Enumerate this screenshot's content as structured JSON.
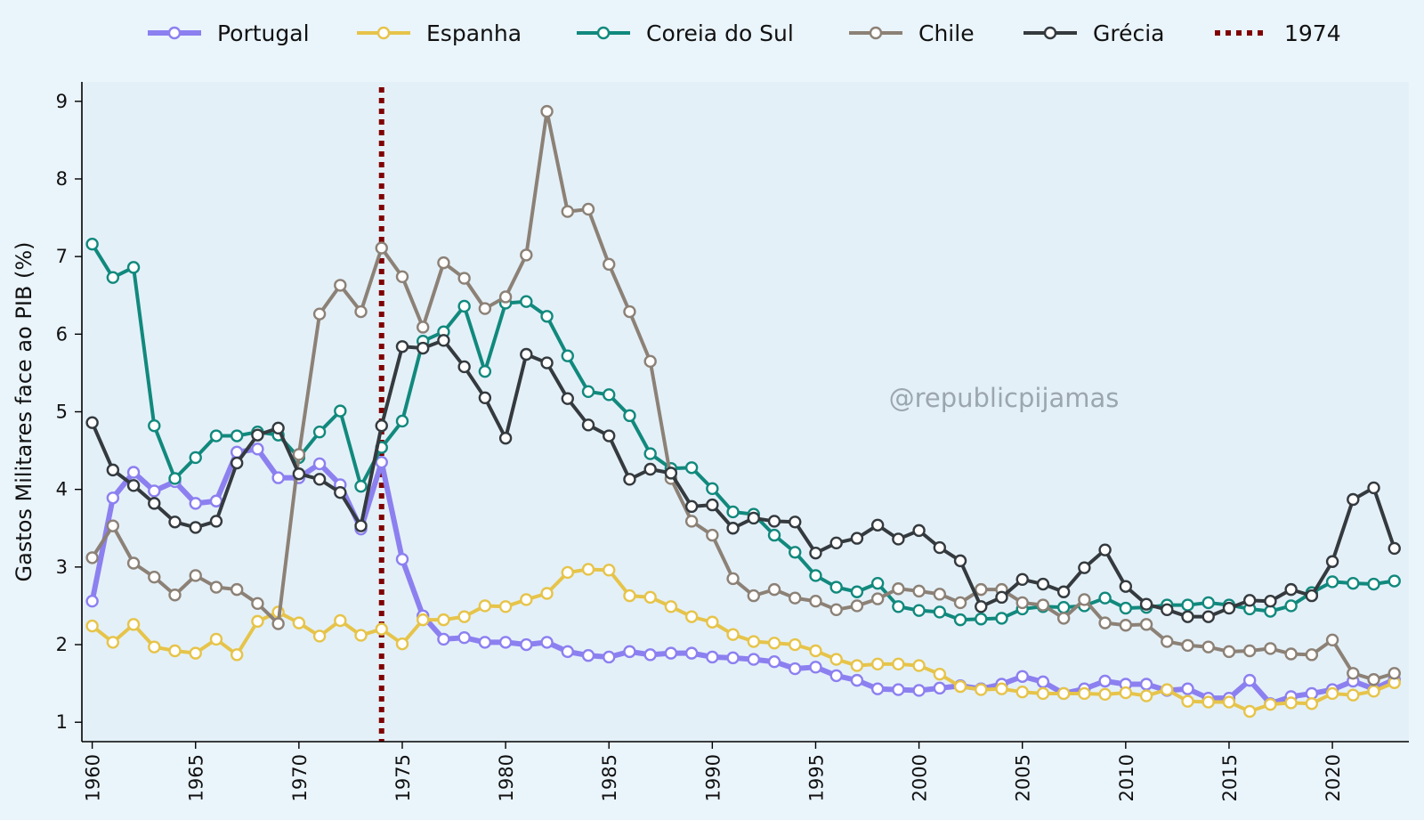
{
  "chart_data": {
    "type": "line",
    "title": "",
    "xlabel": "",
    "ylabel": "Gastos Militares face ao PIB (%)",
    "xlim": [
      1959.5,
      2023.7
    ],
    "ylim": [
      0.75,
      9.25
    ],
    "xticks": [
      1960,
      1965,
      1970,
      1975,
      1980,
      1985,
      1990,
      1995,
      2000,
      2005,
      2010,
      2015,
      2020
    ],
    "yticks": [
      1,
      2,
      3,
      4,
      5,
      6,
      7,
      8,
      9
    ],
    "grid": false,
    "legend_position": "top-center",
    "watermark": "@republicpijamas",
    "vline": {
      "x": 1974,
      "label": "1974",
      "color": "#800000"
    },
    "x": [
      1960,
      1961,
      1962,
      1963,
      1964,
      1965,
      1966,
      1967,
      1968,
      1969,
      1970,
      1971,
      1972,
      1973,
      1974,
      1975,
      1976,
      1977,
      1978,
      1979,
      1980,
      1981,
      1982,
      1983,
      1984,
      1985,
      1986,
      1987,
      1988,
      1989,
      1990,
      1991,
      1992,
      1993,
      1994,
      1995,
      1996,
      1997,
      1998,
      1999,
      2000,
      2001,
      2002,
      2003,
      2004,
      2005,
      2006,
      2007,
      2008,
      2009,
      2010,
      2011,
      2012,
      2013,
      2014,
      2015,
      2016,
      2017,
      2018,
      2019,
      2020,
      2021,
      2022,
      2023
    ],
    "series": [
      {
        "name": "Portugal",
        "color": "#8c80f0",
        "width": 6,
        "values": [
          2.56,
          3.89,
          4.22,
          3.98,
          4.1,
          3.82,
          3.85,
          4.48,
          4.52,
          4.15,
          4.15,
          4.33,
          4.06,
          3.49,
          4.35,
          3.1,
          2.37,
          2.07,
          2.09,
          2.03,
          2.03,
          2.0,
          2.03,
          1.91,
          1.86,
          1.84,
          1.91,
          1.87,
          1.89,
          1.89,
          1.84,
          1.83,
          1.81,
          1.78,
          1.69,
          1.71,
          1.6,
          1.54,
          1.43,
          1.42,
          1.41,
          1.44,
          1.47,
          1.43,
          1.49,
          1.59,
          1.52,
          1.37,
          1.43,
          1.53,
          1.49,
          1.49,
          1.41,
          1.43,
          1.31,
          1.31,
          1.54,
          1.24,
          1.33,
          1.37,
          1.42,
          1.53,
          1.43,
          1.55
        ]
      },
      {
        "name": "Espanha",
        "color": "#e6c44a",
        "width": 4,
        "values": [
          2.24,
          2.03,
          2.26,
          1.97,
          1.92,
          1.89,
          2.07,
          1.87,
          2.3,
          2.42,
          2.28,
          2.11,
          2.31,
          2.12,
          2.2,
          2.01,
          2.32,
          2.32,
          2.36,
          2.5,
          2.49,
          2.58,
          2.66,
          2.93,
          2.97,
          2.96,
          2.63,
          2.61,
          2.49,
          2.36,
          2.29,
          2.13,
          2.04,
          2.02,
          2.0,
          1.92,
          1.81,
          1.73,
          1.75,
          1.75,
          1.73,
          1.62,
          1.46,
          1.42,
          1.43,
          1.39,
          1.37,
          1.37,
          1.37,
          1.36,
          1.38,
          1.34,
          1.42,
          1.27,
          1.26,
          1.26,
          1.14,
          1.23,
          1.25,
          1.24,
          1.37,
          1.35,
          1.4,
          1.51
        ]
      },
      {
        "name": "Coreia do Sul",
        "color": "#11897d",
        "width": 4,
        "values": [
          7.16,
          6.73,
          6.86,
          4.82,
          4.14,
          4.41,
          4.69,
          4.69,
          4.74,
          4.7,
          4.41,
          4.74,
          5.01,
          4.04,
          4.54,
          4.88,
          5.91,
          6.03,
          6.36,
          5.52,
          6.4,
          6.42,
          6.23,
          5.72,
          5.26,
          5.22,
          4.95,
          4.46,
          4.27,
          4.28,
          4.01,
          3.71,
          3.68,
          3.41,
          3.19,
          2.89,
          2.74,
          2.68,
          2.79,
          2.49,
          2.44,
          2.42,
          2.32,
          2.33,
          2.34,
          2.46,
          2.49,
          2.48,
          2.5,
          2.6,
          2.47,
          2.48,
          2.51,
          2.51,
          2.54,
          2.51,
          2.46,
          2.43,
          2.5,
          2.67,
          2.81,
          2.79,
          2.78,
          2.82
        ]
      },
      {
        "name": "Chile",
        "color": "#8c8176",
        "width": 4,
        "values": [
          3.12,
          3.53,
          3.05,
          2.87,
          2.64,
          2.89,
          2.74,
          2.71,
          2.53,
          2.27,
          4.45,
          6.26,
          6.63,
          6.29,
          7.11,
          6.74,
          6.09,
          6.92,
          6.72,
          6.33,
          6.48,
          7.02,
          8.87,
          7.58,
          7.61,
          6.9,
          6.29,
          5.65,
          4.14,
          3.59,
          3.41,
          2.85,
          2.63,
          2.71,
          2.6,
          2.56,
          2.45,
          2.5,
          2.59,
          2.72,
          2.69,
          2.65,
          2.54,
          2.71,
          2.71,
          2.54,
          2.51,
          2.34,
          2.58,
          2.28,
          2.25,
          2.26,
          2.04,
          1.99,
          1.97,
          1.91,
          1.92,
          1.95,
          1.88,
          1.87,
          2.06,
          1.63,
          1.55,
          1.63
        ]
      },
      {
        "name": "Grécia",
        "color": "#343a3e",
        "width": 4,
        "values": [
          4.86,
          4.25,
          4.05,
          3.82,
          3.58,
          3.51,
          3.59,
          4.34,
          4.7,
          4.79,
          4.2,
          4.13,
          3.96,
          3.53,
          4.82,
          5.84,
          5.82,
          5.92,
          5.58,
          5.18,
          4.66,
          5.74,
          5.63,
          5.17,
          4.83,
          4.69,
          4.13,
          4.26,
          4.21,
          3.78,
          3.8,
          3.5,
          3.63,
          3.59,
          3.58,
          3.18,
          3.31,
          3.37,
          3.54,
          3.36,
          3.47,
          3.25,
          3.08,
          2.49,
          2.61,
          2.84,
          2.78,
          2.68,
          2.99,
          3.22,
          2.75,
          2.52,
          2.45,
          2.36,
          2.36,
          2.47,
          2.57,
          2.56,
          2.71,
          2.63,
          3.07,
          3.87,
          4.02,
          3.24
        ]
      }
    ]
  }
}
